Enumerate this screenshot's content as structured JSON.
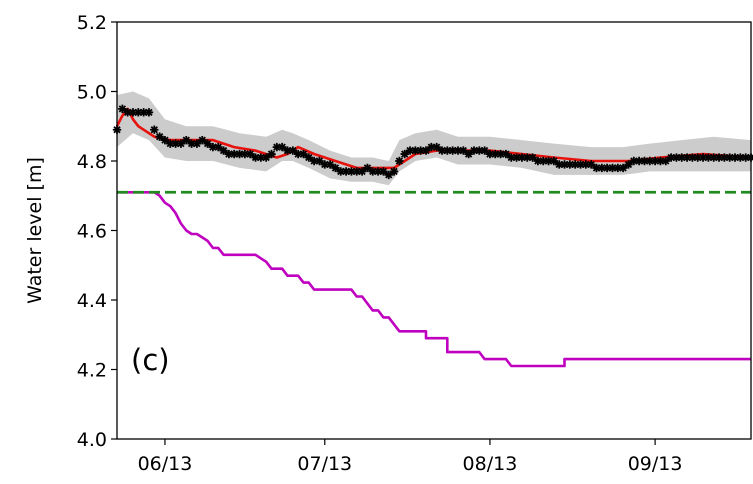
{
  "chart_data": {
    "type": "line",
    "panel_label": "(c)",
    "ylabel": "Water level [m]",
    "xlabel": "",
    "ylim": [
      4.0,
      5.2
    ],
    "yticks": [
      "4.0",
      "4.2",
      "4.4",
      "4.6",
      "4.8",
      "5.0",
      "5.2"
    ],
    "xlim": [
      "2013-05-23",
      "2013-09-19"
    ],
    "xticks": [
      {
        "date": "2013-06-01",
        "label": "06/13"
      },
      {
        "date": "2013-07-01",
        "label": "07/13"
      },
      {
        "date": "2013-08-01",
        "label": "08/13"
      },
      {
        "date": "2013-09-01",
        "label": "09/13"
      }
    ],
    "grid": false,
    "threshold": {
      "style": "dashed",
      "color": "#228B22",
      "value": 4.71
    },
    "band": {
      "color": "#cccccc",
      "points": [
        [
          "2013-05-23",
          4.84,
          4.99
        ],
        [
          "2013-05-26",
          4.88,
          5.0
        ],
        [
          "2013-05-29",
          4.86,
          4.98
        ],
        [
          "2013-06-01",
          4.81,
          4.92
        ],
        [
          "2013-06-05",
          4.8,
          4.9
        ],
        [
          "2013-06-10",
          4.8,
          4.9
        ],
        [
          "2013-06-15",
          4.78,
          4.88
        ],
        [
          "2013-06-20",
          4.77,
          4.87
        ],
        [
          "2013-06-23",
          4.8,
          4.89
        ],
        [
          "2013-06-25",
          4.8,
          4.88
        ],
        [
          "2013-06-28",
          4.78,
          4.86
        ],
        [
          "2013-07-02",
          4.75,
          4.83
        ],
        [
          "2013-07-06",
          4.74,
          4.81
        ],
        [
          "2013-07-10",
          4.74,
          4.81
        ],
        [
          "2013-07-13",
          4.73,
          4.8
        ],
        [
          "2013-07-15",
          4.77,
          4.86
        ],
        [
          "2013-07-18",
          4.8,
          4.88
        ],
        [
          "2013-07-22",
          4.81,
          4.89
        ],
        [
          "2013-07-26",
          4.79,
          4.87
        ],
        [
          "2013-08-01",
          4.79,
          4.87
        ],
        [
          "2013-08-07",
          4.78,
          4.86
        ],
        [
          "2013-08-13",
          4.76,
          4.85
        ],
        [
          "2013-08-20",
          4.76,
          4.84
        ],
        [
          "2013-08-26",
          4.76,
          4.84
        ],
        [
          "2013-08-31",
          4.77,
          4.85
        ],
        [
          "2013-09-06",
          4.77,
          4.86
        ],
        [
          "2013-09-12",
          4.77,
          4.87
        ],
        [
          "2013-09-19",
          4.77,
          4.86
        ]
      ]
    },
    "series": [
      {
        "style": "line",
        "color": "#e8120c",
        "points": [
          [
            "2013-05-23",
            4.9
          ],
          [
            "2013-05-24",
            4.93
          ],
          [
            "2013-05-25",
            4.95
          ],
          [
            "2013-05-26",
            4.92
          ],
          [
            "2013-05-27",
            4.9
          ],
          [
            "2013-05-28",
            4.89
          ],
          [
            "2013-05-30",
            4.87
          ],
          [
            "2013-06-02",
            4.86
          ],
          [
            "2013-06-06",
            4.86
          ],
          [
            "2013-06-10",
            4.86
          ],
          [
            "2013-06-14",
            4.84
          ],
          [
            "2013-06-18",
            4.83
          ],
          [
            "2013-06-22",
            4.81
          ],
          [
            "2013-06-24",
            4.82
          ],
          [
            "2013-06-26",
            4.84
          ],
          [
            "2013-06-29",
            4.82
          ],
          [
            "2013-07-03",
            4.8
          ],
          [
            "2013-07-07",
            4.78
          ],
          [
            "2013-07-11",
            4.78
          ],
          [
            "2013-07-14",
            4.78
          ],
          [
            "2013-07-16",
            4.8
          ],
          [
            "2013-07-18",
            4.82
          ],
          [
            "2013-07-22",
            4.83
          ],
          [
            "2013-07-26",
            4.83
          ],
          [
            "2013-08-01",
            4.83
          ],
          [
            "2013-08-07",
            4.82
          ],
          [
            "2013-08-13",
            4.81
          ],
          [
            "2013-08-20",
            4.8
          ],
          [
            "2013-08-27",
            4.8
          ],
          [
            "2013-09-02",
            4.81
          ],
          [
            "2013-09-10",
            4.82
          ],
          [
            "2013-09-19",
            4.81
          ]
        ]
      },
      {
        "style": "markers",
        "marker": "*",
        "color": "#000000",
        "points": [
          [
            "2013-05-23",
            4.89
          ],
          [
            "2013-05-24",
            4.95
          ],
          [
            "2013-05-25",
            4.94
          ],
          [
            "2013-05-26",
            4.94
          ],
          [
            "2013-05-27",
            4.94
          ],
          [
            "2013-05-28",
            4.94
          ],
          [
            "2013-05-29",
            4.94
          ],
          [
            "2013-05-30",
            4.89
          ],
          [
            "2013-05-31",
            4.87
          ],
          [
            "2013-06-01",
            4.86
          ],
          [
            "2013-06-02",
            4.85
          ],
          [
            "2013-06-03",
            4.85
          ],
          [
            "2013-06-04",
            4.85
          ],
          [
            "2013-06-05",
            4.86
          ],
          [
            "2013-06-06",
            4.85
          ],
          [
            "2013-06-07",
            4.85
          ],
          [
            "2013-06-08",
            4.86
          ],
          [
            "2013-06-09",
            4.85
          ],
          [
            "2013-06-10",
            4.84
          ],
          [
            "2013-06-11",
            4.84
          ],
          [
            "2013-06-12",
            4.83
          ],
          [
            "2013-06-13",
            4.82
          ],
          [
            "2013-06-14",
            4.82
          ],
          [
            "2013-06-15",
            4.82
          ],
          [
            "2013-06-16",
            4.82
          ],
          [
            "2013-06-17",
            4.82
          ],
          [
            "2013-06-18",
            4.81
          ],
          [
            "2013-06-19",
            4.81
          ],
          [
            "2013-06-20",
            4.81
          ],
          [
            "2013-06-21",
            4.82
          ],
          [
            "2013-06-22",
            4.84
          ],
          [
            "2013-06-23",
            4.84
          ],
          [
            "2013-06-24",
            4.83
          ],
          [
            "2013-06-25",
            4.83
          ],
          [
            "2013-06-26",
            4.82
          ],
          [
            "2013-06-27",
            4.82
          ],
          [
            "2013-06-28",
            4.81
          ],
          [
            "2013-06-29",
            4.8
          ],
          [
            "2013-06-30",
            4.8
          ],
          [
            "2013-07-01",
            4.79
          ],
          [
            "2013-07-02",
            4.79
          ],
          [
            "2013-07-03",
            4.78
          ],
          [
            "2013-07-04",
            4.77
          ],
          [
            "2013-07-05",
            4.77
          ],
          [
            "2013-07-06",
            4.77
          ],
          [
            "2013-07-07",
            4.77
          ],
          [
            "2013-07-08",
            4.77
          ],
          [
            "2013-07-09",
            4.78
          ],
          [
            "2013-07-10",
            4.77
          ],
          [
            "2013-07-11",
            4.77
          ],
          [
            "2013-07-12",
            4.77
          ],
          [
            "2013-07-13",
            4.76
          ],
          [
            "2013-07-14",
            4.77
          ],
          [
            "2013-07-15",
            4.8
          ],
          [
            "2013-07-16",
            4.82
          ],
          [
            "2013-07-17",
            4.83
          ],
          [
            "2013-07-18",
            4.83
          ],
          [
            "2013-07-19",
            4.83
          ],
          [
            "2013-07-20",
            4.83
          ],
          [
            "2013-07-21",
            4.84
          ],
          [
            "2013-07-22",
            4.84
          ],
          [
            "2013-07-23",
            4.83
          ],
          [
            "2013-07-24",
            4.83
          ],
          [
            "2013-07-25",
            4.83
          ],
          [
            "2013-07-26",
            4.83
          ],
          [
            "2013-07-27",
            4.83
          ],
          [
            "2013-07-28",
            4.82
          ],
          [
            "2013-07-29",
            4.83
          ],
          [
            "2013-07-30",
            4.83
          ],
          [
            "2013-07-31",
            4.83
          ],
          [
            "2013-08-01",
            4.82
          ],
          [
            "2013-08-02",
            4.82
          ],
          [
            "2013-08-03",
            4.82
          ],
          [
            "2013-08-04",
            4.82
          ],
          [
            "2013-08-05",
            4.81
          ],
          [
            "2013-08-06",
            4.81
          ],
          [
            "2013-08-07",
            4.81
          ],
          [
            "2013-08-08",
            4.81
          ],
          [
            "2013-08-09",
            4.81
          ],
          [
            "2013-08-10",
            4.8
          ],
          [
            "2013-08-11",
            4.8
          ],
          [
            "2013-08-12",
            4.8
          ],
          [
            "2013-08-13",
            4.8
          ],
          [
            "2013-08-14",
            4.79
          ],
          [
            "2013-08-15",
            4.79
          ],
          [
            "2013-08-16",
            4.79
          ],
          [
            "2013-08-17",
            4.79
          ],
          [
            "2013-08-18",
            4.79
          ],
          [
            "2013-08-19",
            4.79
          ],
          [
            "2013-08-20",
            4.79
          ],
          [
            "2013-08-21",
            4.78
          ],
          [
            "2013-08-22",
            4.78
          ],
          [
            "2013-08-23",
            4.78
          ],
          [
            "2013-08-24",
            4.78
          ],
          [
            "2013-08-25",
            4.78
          ],
          [
            "2013-08-26",
            4.78
          ],
          [
            "2013-08-27",
            4.79
          ],
          [
            "2013-08-28",
            4.8
          ],
          [
            "2013-08-29",
            4.8
          ],
          [
            "2013-08-30",
            4.8
          ],
          [
            "2013-08-31",
            4.8
          ],
          [
            "2013-09-01",
            4.8
          ],
          [
            "2013-09-02",
            4.8
          ],
          [
            "2013-09-03",
            4.8
          ],
          [
            "2013-09-04",
            4.81
          ],
          [
            "2013-09-05",
            4.81
          ],
          [
            "2013-09-06",
            4.81
          ],
          [
            "2013-09-07",
            4.81
          ],
          [
            "2013-09-08",
            4.81
          ],
          [
            "2013-09-09",
            4.81
          ],
          [
            "2013-09-10",
            4.81
          ],
          [
            "2013-09-11",
            4.81
          ],
          [
            "2013-09-12",
            4.81
          ],
          [
            "2013-09-13",
            4.81
          ],
          [
            "2013-09-14",
            4.81
          ],
          [
            "2013-09-15",
            4.81
          ],
          [
            "2013-09-16",
            4.81
          ],
          [
            "2013-09-17",
            4.81
          ],
          [
            "2013-09-18",
            4.81
          ],
          [
            "2013-09-19",
            4.81
          ]
        ]
      },
      {
        "style": "line",
        "color": "#bf00bf",
        "points": [
          [
            "2013-05-23",
            4.71
          ],
          [
            "2013-05-30",
            4.71
          ],
          [
            "2013-05-31",
            4.7
          ],
          [
            "2013-06-01",
            4.68
          ],
          [
            "2013-06-02",
            4.67
          ],
          [
            "2013-06-03",
            4.65
          ],
          [
            "2013-06-04",
            4.62
          ],
          [
            "2013-06-05",
            4.6
          ],
          [
            "2013-06-06",
            4.59
          ],
          [
            "2013-06-07",
            4.59
          ],
          [
            "2013-06-08",
            4.58
          ],
          [
            "2013-06-09",
            4.57
          ],
          [
            "2013-06-10",
            4.55
          ],
          [
            "2013-06-11",
            4.55
          ],
          [
            "2013-06-12",
            4.53
          ],
          [
            "2013-06-18",
            4.53
          ],
          [
            "2013-06-19",
            4.52
          ],
          [
            "2013-06-20",
            4.51
          ],
          [
            "2013-06-21",
            4.49
          ],
          [
            "2013-06-23",
            4.49
          ],
          [
            "2013-06-24",
            4.47
          ],
          [
            "2013-06-26",
            4.47
          ],
          [
            "2013-06-27",
            4.45
          ],
          [
            "2013-06-28",
            4.45
          ],
          [
            "2013-06-29",
            4.43
          ],
          [
            "2013-07-06",
            4.43
          ],
          [
            "2013-07-07",
            4.41
          ],
          [
            "2013-07-08",
            4.41
          ],
          [
            "2013-07-09",
            4.39
          ],
          [
            "2013-07-10",
            4.37
          ],
          [
            "2013-07-11",
            4.37
          ],
          [
            "2013-07-12",
            4.35
          ],
          [
            "2013-07-13",
            4.35
          ],
          [
            "2013-07-14",
            4.33
          ],
          [
            "2013-07-15",
            4.31
          ],
          [
            "2013-07-20",
            4.31
          ],
          [
            "2013-07-20",
            4.29
          ],
          [
            "2013-07-24",
            4.29
          ],
          [
            "2013-07-24",
            4.25
          ],
          [
            "2013-07-30",
            4.25
          ],
          [
            "2013-07-31",
            4.23
          ],
          [
            "2013-08-04",
            4.23
          ],
          [
            "2013-08-05",
            4.21
          ],
          [
            "2013-08-15",
            4.21
          ],
          [
            "2013-08-15",
            4.23
          ],
          [
            "2013-09-19",
            4.23
          ]
        ]
      }
    ]
  }
}
